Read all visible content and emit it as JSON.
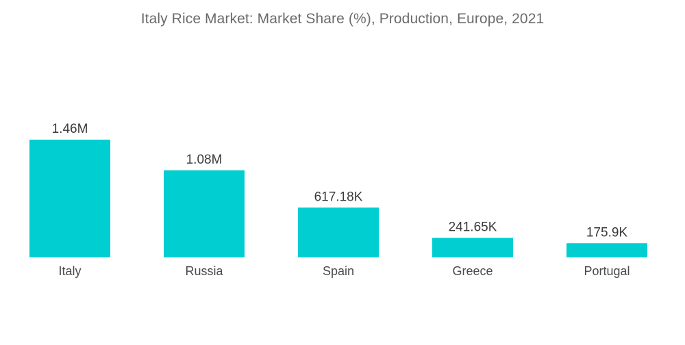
{
  "chart_data": {
    "type": "bar",
    "title": "Italy Rice Market: Market Share (%), Production, Europe, 2021",
    "xlabel": "",
    "ylabel": "",
    "categories": [
      "Italy",
      "Russia",
      "Spain",
      "Greece",
      "Portugal"
    ],
    "values": [
      1460000,
      1080000,
      617180,
      241650,
      175900
    ],
    "value_labels": [
      "1.46M",
      "1.08M",
      "617.18K",
      "241.65K",
      "175.9K"
    ],
    "ylim": [
      0,
      1460000
    ],
    "grid": false,
    "legend": "none",
    "bar_color": "#00CED1"
  }
}
